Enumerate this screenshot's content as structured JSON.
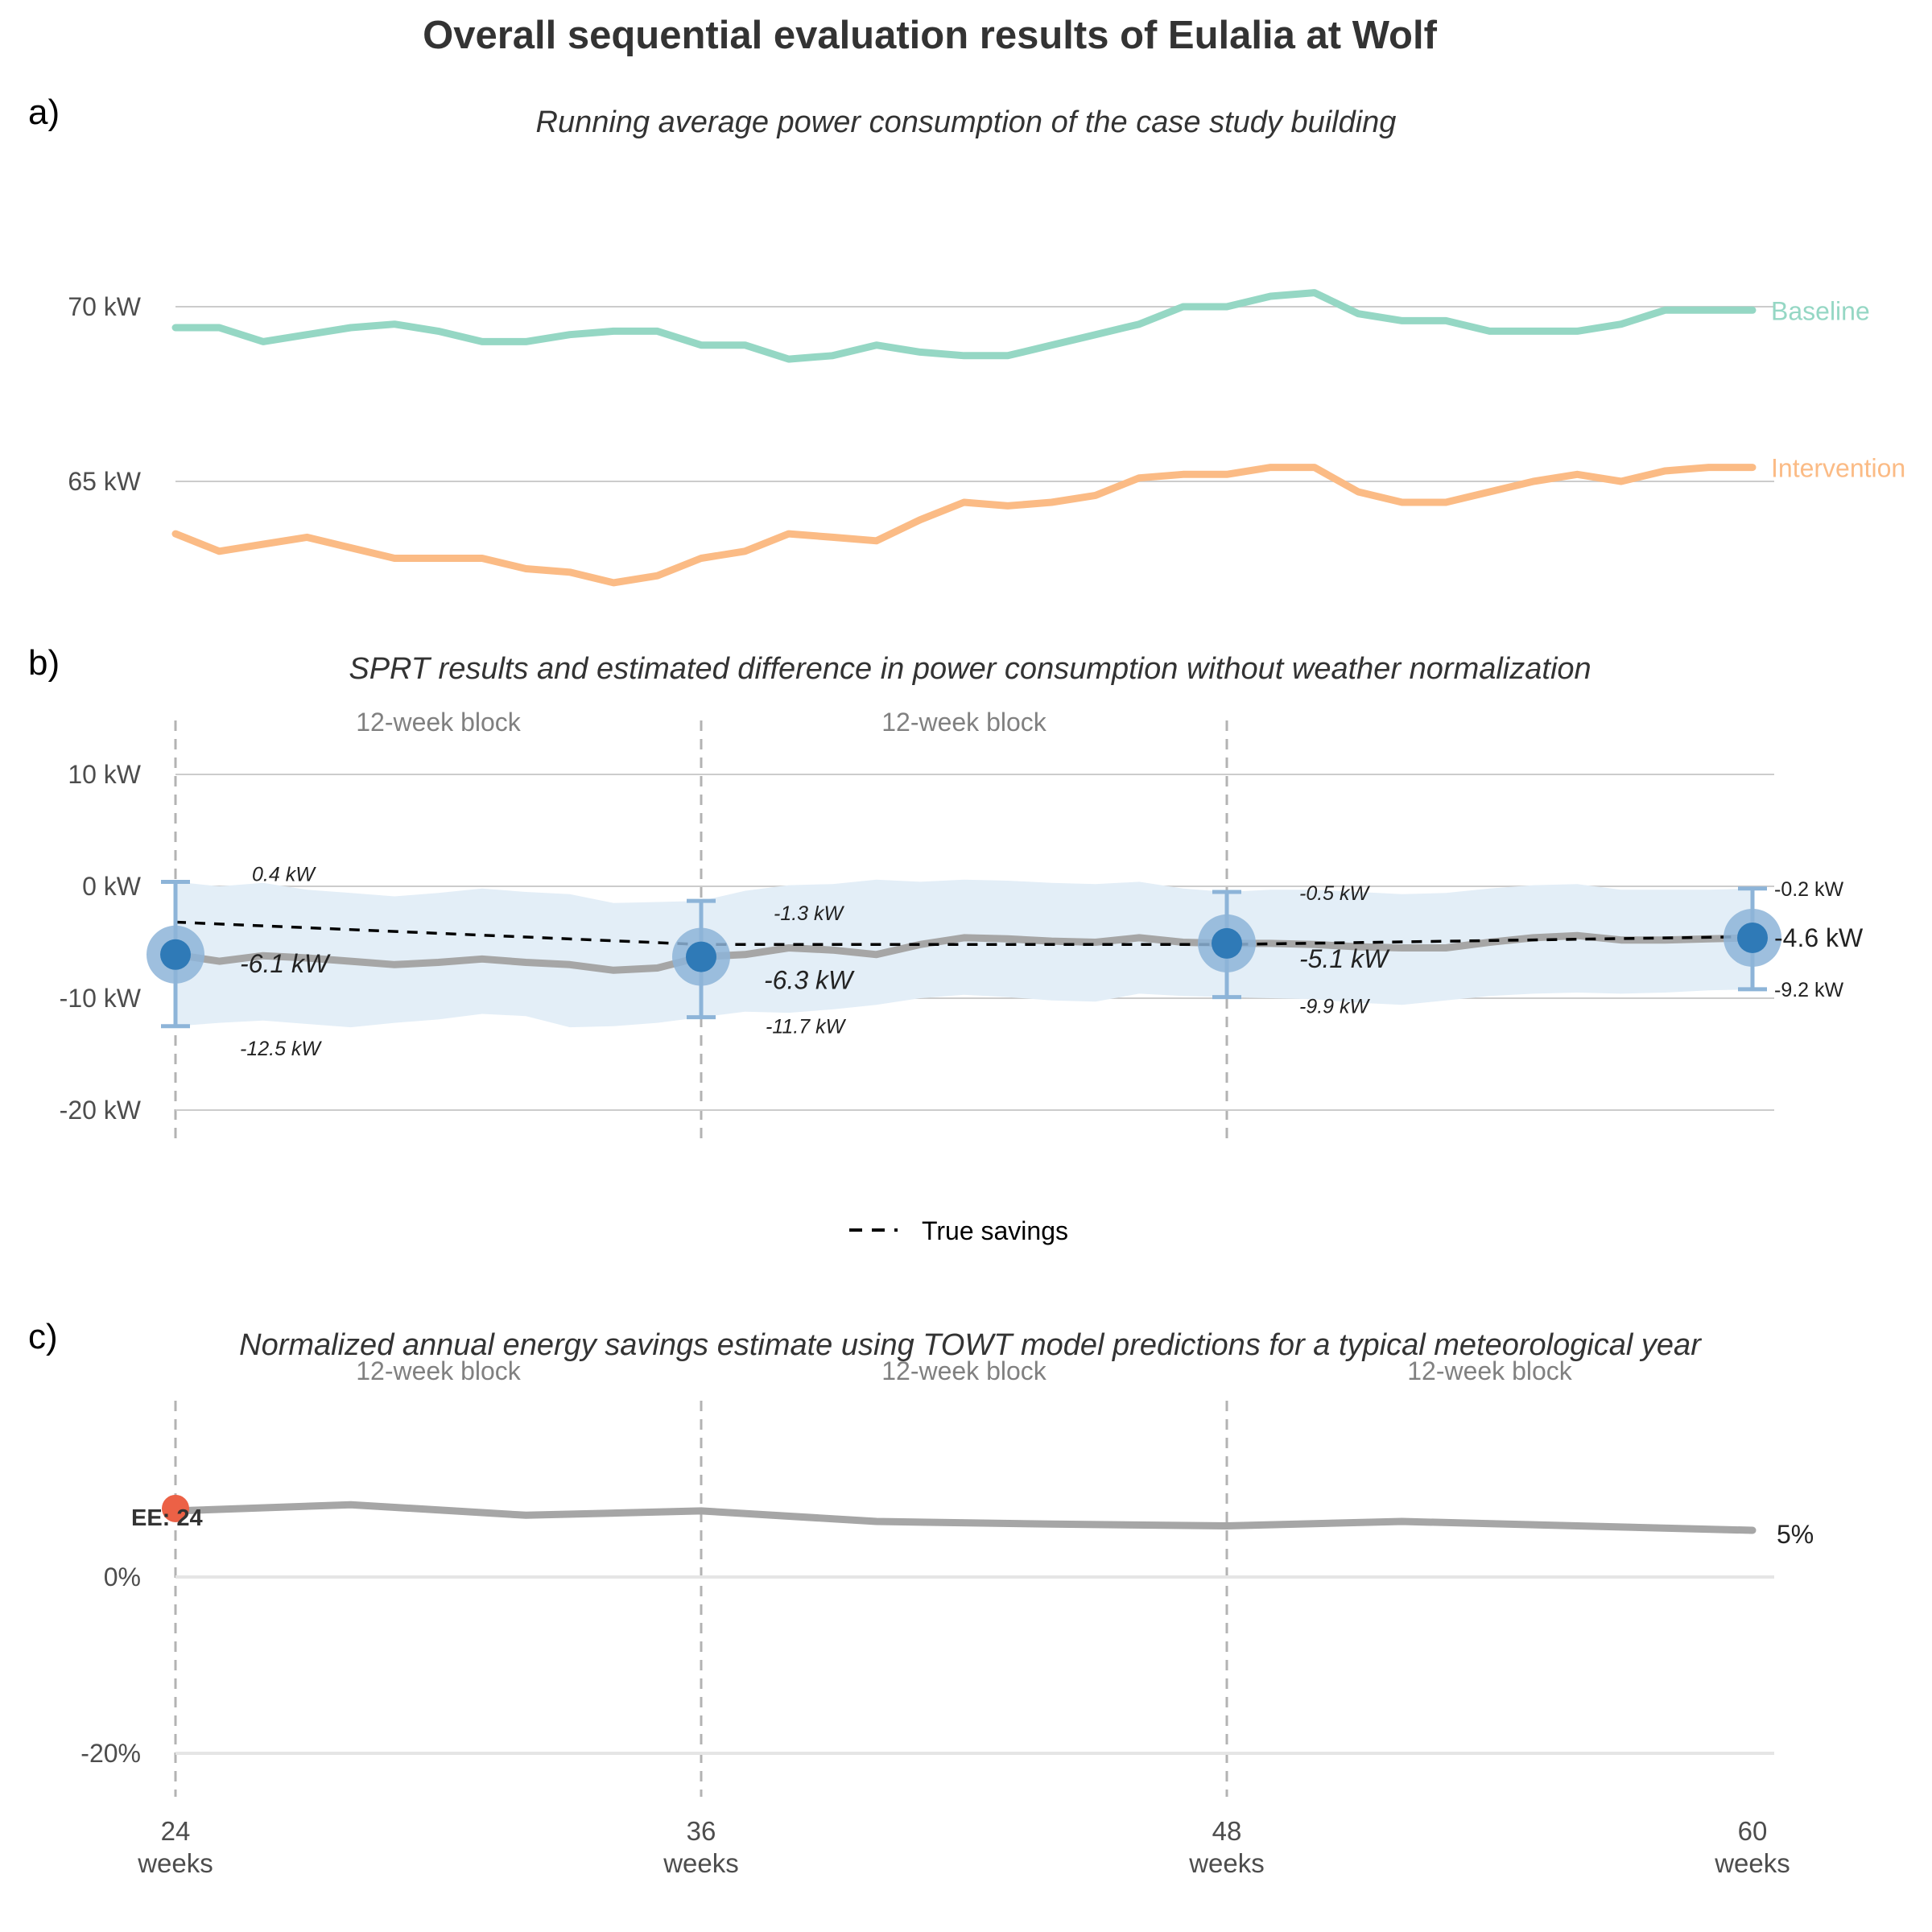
{
  "title": "Overall sequential evaluation results of Eulalia at Wolf",
  "colors": {
    "baseline": "#95d7c4",
    "intervention": "#fbbb85",
    "estimate": "#a6a6a6",
    "band": "#e3eef7",
    "point": "#2f7ab7",
    "halo": "#8db4d8",
    "ee_point": "#ec6146",
    "grid": "#cccccc",
    "vline": "#b3b3b3",
    "true_savings": "#000000"
  },
  "x_ticks": [
    {
      "week": 24,
      "value": "24",
      "unit": "weeks"
    },
    {
      "week": 36,
      "value": "36",
      "unit": "weeks"
    },
    {
      "week": 48,
      "value": "48",
      "unit": "weeks"
    },
    {
      "week": 60,
      "value": "60",
      "unit": "weeks"
    }
  ],
  "chart_data": [
    {
      "panel": "a)",
      "type": "line",
      "subtitle": "Running average power consumption of the case study building",
      "y_ticks": [
        "65 kW",
        "70 kW"
      ],
      "y_tick_values": [
        65,
        70
      ],
      "ylim": [
        60.5,
        73
      ],
      "x": [
        24,
        25,
        26,
        27,
        28,
        29,
        30,
        31,
        32,
        33,
        34,
        35,
        36,
        37,
        38,
        39,
        40,
        41,
        42,
        43,
        44,
        45,
        46,
        47,
        48,
        49,
        50,
        51,
        52,
        53,
        54,
        55,
        56,
        57,
        58,
        59,
        60
      ],
      "series": [
        {
          "name": "Baseline",
          "values": [
            69.4,
            69.4,
            69.0,
            69.2,
            69.4,
            69.5,
            69.3,
            69.0,
            69.0,
            69.2,
            69.3,
            69.3,
            68.9,
            68.9,
            68.5,
            68.6,
            68.9,
            68.7,
            68.6,
            68.6,
            68.9,
            69.2,
            69.5,
            70.0,
            70.0,
            70.3,
            70.4,
            69.8,
            69.6,
            69.6,
            69.3,
            69.3,
            69.3,
            69.5,
            69.9,
            69.9,
            69.9
          ]
        },
        {
          "name": "Intervention",
          "values": [
            63.5,
            63.0,
            63.2,
            63.4,
            63.1,
            62.8,
            62.8,
            62.8,
            62.5,
            62.4,
            62.1,
            62.3,
            62.8,
            63.0,
            63.5,
            63.4,
            63.3,
            63.9,
            64.4,
            64.3,
            64.4,
            64.6,
            65.1,
            65.2,
            65.2,
            65.4,
            65.4,
            64.7,
            64.4,
            64.4,
            64.7,
            65.0,
            65.2,
            65.0,
            65.3,
            65.4,
            65.4
          ]
        }
      ]
    },
    {
      "panel": "b)",
      "type": "line",
      "subtitle": "SPRT results and estimated difference in power consumption without weather normalization",
      "y_ticks": [
        "-20 kW",
        "-10 kW",
        "0 kW",
        "10 kW"
      ],
      "y_tick_values": [
        -20,
        -10,
        0,
        10
      ],
      "ylim": [
        -24,
        15
      ],
      "block_label": "12-week block",
      "x": [
        24,
        25,
        26,
        27,
        28,
        29,
        30,
        31,
        32,
        33,
        34,
        35,
        36,
        37,
        38,
        39,
        40,
        41,
        42,
        43,
        44,
        45,
        46,
        47,
        48,
        49,
        50,
        51,
        52,
        53,
        54,
        55,
        56,
        57,
        58,
        59,
        60
      ],
      "estimate": [
        -6.1,
        -6.7,
        -6.2,
        -6.4,
        -6.7,
        -7.0,
        -6.8,
        -6.5,
        -6.8,
        -7.0,
        -7.5,
        -7.3,
        -6.3,
        -6.1,
        -5.5,
        -5.7,
        -6.1,
        -5.2,
        -4.6,
        -4.7,
        -4.9,
        -5.0,
        -4.6,
        -5.0,
        -5.1,
        -5.1,
        -5.2,
        -5.4,
        -5.5,
        -5.5,
        -5.0,
        -4.6,
        -4.4,
        -4.8,
        -4.8,
        -4.7,
        -4.6
      ],
      "band_upper": [
        0.4,
        0.0,
        0.3,
        -0.3,
        -0.6,
        -0.9,
        -0.6,
        -0.2,
        -0.5,
        -0.7,
        -1.5,
        -1.4,
        -1.3,
        -0.4,
        0.1,
        0.2,
        0.6,
        0.4,
        0.6,
        0.5,
        0.3,
        0.2,
        0.4,
        -0.2,
        -0.5,
        -0.3,
        -0.3,
        -0.5,
        -0.7,
        -0.6,
        -0.2,
        0.1,
        0.2,
        -0.3,
        -0.3,
        -0.3,
        -0.2
      ],
      "band_lower": [
        -12.5,
        -12.2,
        -12.0,
        -12.3,
        -12.6,
        -12.2,
        -11.9,
        -11.4,
        -11.6,
        -12.6,
        -12.5,
        -12.2,
        -11.7,
        -11.2,
        -11.3,
        -11.0,
        -10.6,
        -10.0,
        -9.7,
        -9.9,
        -10.2,
        -10.3,
        -9.6,
        -9.8,
        -9.9,
        -10.0,
        -10.1,
        -10.4,
        -10.6,
        -10.2,
        -9.8,
        -9.6,
        -9.5,
        -9.6,
        -9.5,
        -9.3,
        -9.2
      ],
      "true_savings": {
        "name": "True savings",
        "x": [
          24,
          36,
          48,
          60
        ],
        "values": [
          -3.2,
          -5.2,
          -5.2,
          -4.5
        ]
      },
      "checkpoints": [
        {
          "week": 24,
          "estimate": -6.1,
          "upper": 0.4,
          "lower": -12.5,
          "estimate_label": "-6.1 kW",
          "upper_label": "0.4 kW",
          "lower_label": "-12.5 kW"
        },
        {
          "week": 36,
          "estimate": -6.3,
          "upper": -1.3,
          "lower": -11.7,
          "estimate_label": "-6.3 kW",
          "upper_label": "-1.3 kW",
          "lower_label": "-11.7 kW"
        },
        {
          "week": 48,
          "estimate": -5.1,
          "upper": -0.5,
          "lower": -9.9,
          "estimate_label": "-5.1 kW",
          "upper_label": "-0.5 kW",
          "lower_label": "-9.9 kW"
        },
        {
          "week": 60,
          "estimate": -4.6,
          "upper": -0.2,
          "lower": -9.2,
          "estimate_label": "-4.6 kW",
          "upper_label": "-0.2 kW",
          "lower_label": "-9.2 kW"
        }
      ],
      "legend": {
        "label": "True savings",
        "placement": "bottom"
      }
    },
    {
      "panel": "c)",
      "type": "line",
      "subtitle": "Normalized annual energy savings estimate using TOWT model predictions for a typical meteorological year",
      "y_ticks": [
        "-20%",
        "0%"
      ],
      "y_tick_values": [
        -20,
        0
      ],
      "ylim": [
        -27,
        13
      ],
      "block_label": "12-week block",
      "x": [
        24,
        28,
        32,
        36,
        40,
        44,
        48,
        52,
        56,
        60
      ],
      "values": [
        7.5,
        8.2,
        7.0,
        7.5,
        6.3,
        6.0,
        5.8,
        6.3,
        5.8,
        5.3
      ],
      "end_label": "5%",
      "early_end": {
        "week": 24,
        "value": 7.5,
        "label": "EE: 24"
      }
    }
  ]
}
